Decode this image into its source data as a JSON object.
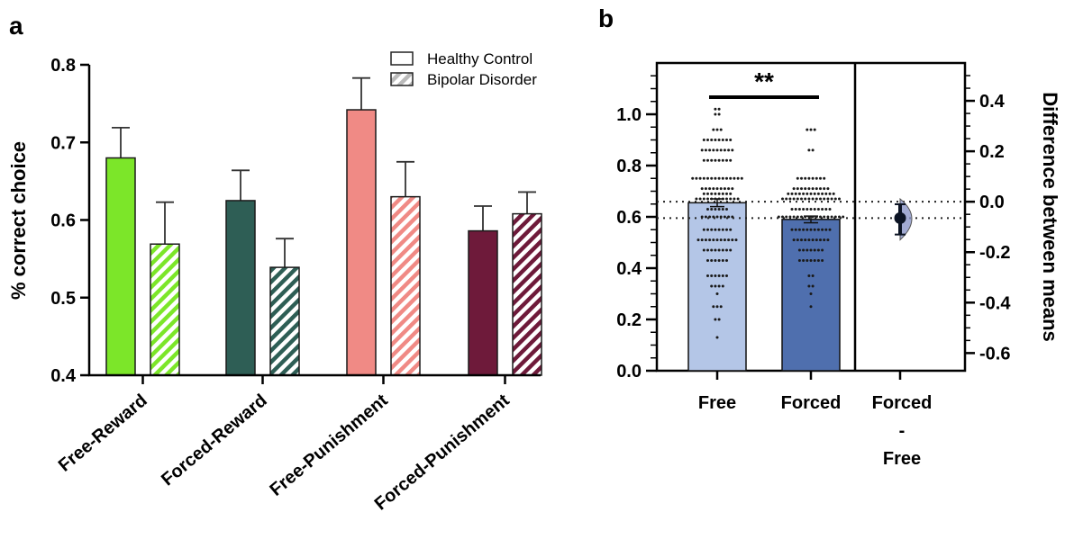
{
  "panel_labels": [
    "a",
    "b"
  ],
  "colors": {
    "free_reward": "#7ce629",
    "forced_reward": "#2e5e55",
    "free_punishment": "#f08a85",
    "forced_punishment": "#6e1a3a",
    "free_b": "#b4c6e7",
    "forced_b": "#4f6fae",
    "contrast_point": "#0c1424",
    "contrast_shade": "#8b96c8"
  },
  "chart_data": [
    {
      "type": "bar",
      "panel": "a",
      "categories": [
        "Free-Reward",
        "Forced-Reward",
        "Free-Punishment",
        "Forced-Punishment"
      ],
      "series": [
        {
          "name": "Healthy Control",
          "values": [
            0.68,
            0.625,
            0.742,
            0.586
          ],
          "error": [
            0.039,
            0.039,
            0.041,
            0.032
          ],
          "pattern": "solid"
        },
        {
          "name": "Bipolar Disorder",
          "values": [
            0.569,
            0.539,
            0.63,
            0.608
          ],
          "error": [
            0.054,
            0.037,
            0.045,
            0.028
          ],
          "pattern": "hatched"
        }
      ],
      "xlabel": "",
      "ylabel": "% correct choice",
      "ylim": [
        0.4,
        0.8
      ],
      "yticks": [
        "0.4",
        "0.5",
        "0.6",
        "0.7",
        "0.8"
      ],
      "legend_position": "top-right",
      "grid": false
    },
    {
      "type": "bar",
      "panel": "b",
      "categories": [
        "Free",
        "Forced"
      ],
      "values": [
        0.655,
        0.59
      ],
      "error": [
        0.015,
        0.013
      ],
      "ylabel": "",
      "ylim": [
        0,
        1.2
      ],
      "yticks": [
        "0.0",
        "0.2",
        "0.4",
        "0.6",
        "0.8",
        "1.0"
      ],
      "significance": "**",
      "points": {
        "Free": [
          1.02,
          1.02,
          1.0,
          1.0,
          0.94,
          0.94,
          0.94,
          0.9,
          0.9,
          0.9,
          0.9,
          0.9,
          0.9,
          0.9,
          0.9,
          0.86,
          0.86,
          0.86,
          0.86,
          0.86,
          0.86,
          0.86,
          0.86,
          0.86,
          0.82,
          0.82,
          0.82,
          0.82,
          0.82,
          0.82,
          0.82,
          0.82,
          0.75,
          0.75,
          0.75,
          0.75,
          0.75,
          0.75,
          0.75,
          0.75,
          0.75,
          0.75,
          0.75,
          0.75,
          0.75,
          0.75,
          0.71,
          0.71,
          0.71,
          0.71,
          0.71,
          0.71,
          0.71,
          0.71,
          0.71,
          0.69,
          0.69,
          0.69,
          0.69,
          0.69,
          0.69,
          0.69,
          0.69,
          0.67,
          0.67,
          0.67,
          0.67,
          0.67,
          0.67,
          0.67,
          0.67,
          0.67,
          0.67,
          0.67,
          0.67,
          0.63,
          0.63,
          0.63,
          0.63,
          0.63,
          0.63,
          0.6,
          0.6,
          0.6,
          0.6,
          0.6,
          0.6,
          0.6,
          0.6,
          0.6,
          0.55,
          0.55,
          0.55,
          0.55,
          0.55,
          0.55,
          0.55,
          0.55,
          0.51,
          0.51,
          0.51,
          0.51,
          0.51,
          0.51,
          0.51,
          0.51,
          0.51,
          0.51,
          0.51,
          0.47,
          0.47,
          0.47,
          0.47,
          0.47,
          0.47,
          0.47,
          0.47,
          0.43,
          0.43,
          0.43,
          0.43,
          0.43,
          0.43,
          0.37,
          0.37,
          0.37,
          0.37,
          0.37,
          0.37,
          0.33,
          0.33,
          0.33,
          0.33,
          0.3,
          0.25,
          0.25,
          0.25,
          0.2,
          0.2,
          0.13
        ],
        "Forced": [
          0.94,
          0.94,
          0.94,
          0.86,
          0.86,
          0.75,
          0.75,
          0.75,
          0.75,
          0.75,
          0.75,
          0.75,
          0.75,
          0.71,
          0.71,
          0.71,
          0.71,
          0.71,
          0.71,
          0.71,
          0.71,
          0.71,
          0.71,
          0.69,
          0.69,
          0.69,
          0.69,
          0.69,
          0.69,
          0.69,
          0.69,
          0.69,
          0.69,
          0.69,
          0.69,
          0.69,
          0.67,
          0.67,
          0.67,
          0.67,
          0.67,
          0.67,
          0.67,
          0.67,
          0.67,
          0.67,
          0.67,
          0.67,
          0.67,
          0.67,
          0.67,
          0.67,
          0.63,
          0.63,
          0.63,
          0.63,
          0.63,
          0.63,
          0.63,
          0.63,
          0.63,
          0.63,
          0.63,
          0.6,
          0.6,
          0.6,
          0.6,
          0.6,
          0.6,
          0.6,
          0.6,
          0.6,
          0.6,
          0.6,
          0.6,
          0.6,
          0.6,
          0.6,
          0.6,
          0.6,
          0.6,
          0.55,
          0.55,
          0.55,
          0.55,
          0.55,
          0.55,
          0.55,
          0.55,
          0.55,
          0.55,
          0.55,
          0.51,
          0.51,
          0.51,
          0.51,
          0.51,
          0.51,
          0.51,
          0.51,
          0.51,
          0.51,
          0.47,
          0.47,
          0.47,
          0.47,
          0.47,
          0.47,
          0.47,
          0.43,
          0.43,
          0.43,
          0.43,
          0.43,
          0.43,
          0.43,
          0.37,
          0.37,
          0.33,
          0.33,
          0.3,
          0.25
        ]
      }
    },
    {
      "type": "scatter",
      "panel": "b-contrast",
      "categories": [
        "Forced - Free"
      ],
      "category_lines": [
        "Forced",
        "-",
        "Free"
      ],
      "mean_difference": -0.065,
      "ci": [
        -0.13,
        -0.01
      ],
      "ylabel": "Difference between means",
      "ylim": [
        -0.67,
        0.55
      ],
      "yticks": [
        "0.4",
        "0.2",
        "0.0",
        "-0.2",
        "-0.4",
        "-0.6"
      ],
      "reference_lines": [
        0.0,
        -0.065
      ]
    }
  ]
}
